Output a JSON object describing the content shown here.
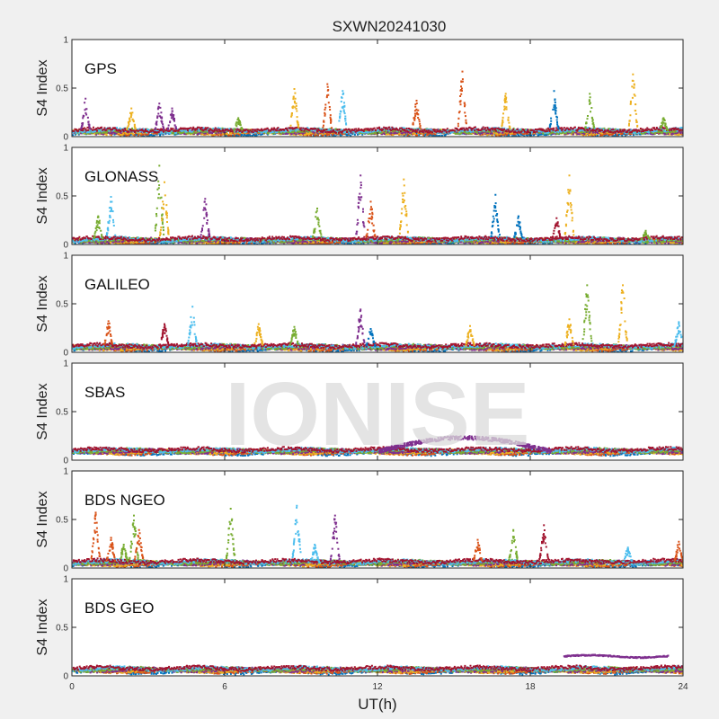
{
  "chart_data": {
    "type": "scatter",
    "title": "SXWN20241030",
    "xlabel": "UT(h)",
    "ylabel": "S4 Index",
    "xlim": [
      0,
      24
    ],
    "ylim": [
      0,
      1
    ],
    "x_ticks": [
      "0",
      "6",
      "12",
      "18",
      "24"
    ],
    "y_ticks": [
      "0",
      "0.5",
      "1"
    ],
    "watermark": "IONISE",
    "grid": false,
    "colors": [
      "#0072BD",
      "#D95319",
      "#EDB120",
      "#7E2F8E",
      "#77AC30",
      "#4DBEEE",
      "#A2142F"
    ],
    "panels": [
      {
        "label": "GPS",
        "baseline": 0.06,
        "spikes": [
          {
            "t": 0.5,
            "peak": 0.4,
            "c": 3
          },
          {
            "t": 2.3,
            "peak": 0.3,
            "c": 2
          },
          {
            "t": 3.4,
            "peak": 0.35,
            "c": 3
          },
          {
            "t": 3.9,
            "peak": 0.3,
            "c": 3
          },
          {
            "t": 6.5,
            "peak": 0.2,
            "c": 4
          },
          {
            "t": 8.7,
            "peak": 0.5,
            "c": 2
          },
          {
            "t": 10.0,
            "peak": 0.55,
            "c": 1
          },
          {
            "t": 10.6,
            "peak": 0.48,
            "c": 5
          },
          {
            "t": 13.5,
            "peak": 0.38,
            "c": 1
          },
          {
            "t": 15.3,
            "peak": 0.68,
            "c": 1
          },
          {
            "t": 17.0,
            "peak": 0.45,
            "c": 2
          },
          {
            "t": 18.9,
            "peak": 0.48,
            "c": 0
          },
          {
            "t": 20.3,
            "peak": 0.45,
            "c": 4
          },
          {
            "t": 22.0,
            "peak": 0.65,
            "c": 2
          },
          {
            "t": 23.2,
            "peak": 0.2,
            "c": 4
          }
        ]
      },
      {
        "label": "GLONASS",
        "baseline": 0.05,
        "spikes": [
          {
            "t": 1.0,
            "peak": 0.3,
            "c": 4
          },
          {
            "t": 1.5,
            "peak": 0.5,
            "c": 5
          },
          {
            "t": 3.4,
            "peak": 0.82,
            "c": 4
          },
          {
            "t": 3.6,
            "peak": 0.65,
            "c": 2
          },
          {
            "t": 5.2,
            "peak": 0.48,
            "c": 3
          },
          {
            "t": 9.6,
            "peak": 0.38,
            "c": 4
          },
          {
            "t": 11.3,
            "peak": 0.72,
            "c": 3
          },
          {
            "t": 11.7,
            "peak": 0.45,
            "c": 1
          },
          {
            "t": 13.0,
            "peak": 0.68,
            "c": 2
          },
          {
            "t": 16.6,
            "peak": 0.52,
            "c": 0
          },
          {
            "t": 17.5,
            "peak": 0.3,
            "c": 0
          },
          {
            "t": 19.0,
            "peak": 0.28,
            "c": 6
          },
          {
            "t": 19.5,
            "peak": 0.72,
            "c": 2
          },
          {
            "t": 22.5,
            "peak": 0.15,
            "c": 4
          }
        ]
      },
      {
        "label": "GALILEO",
        "baseline": 0.06,
        "spikes": [
          {
            "t": 1.4,
            "peak": 0.33,
            "c": 1
          },
          {
            "t": 3.6,
            "peak": 0.3,
            "c": 6
          },
          {
            "t": 4.7,
            "peak": 0.48,
            "c": 5
          },
          {
            "t": 7.3,
            "peak": 0.3,
            "c": 2
          },
          {
            "t": 8.7,
            "peak": 0.27,
            "c": 4
          },
          {
            "t": 11.3,
            "peak": 0.45,
            "c": 3
          },
          {
            "t": 11.7,
            "peak": 0.25,
            "c": 0
          },
          {
            "t": 15.6,
            "peak": 0.28,
            "c": 2
          },
          {
            "t": 19.5,
            "peak": 0.35,
            "c": 2
          },
          {
            "t": 20.2,
            "peak": 0.7,
            "c": 4
          },
          {
            "t": 21.6,
            "peak": 0.7,
            "c": 2
          },
          {
            "t": 23.8,
            "peak": 0.32,
            "c": 5
          }
        ]
      },
      {
        "label": "SBAS",
        "baseline": 0.1,
        "hump": {
          "from": 12.0,
          "to": 18.8,
          "peak": 0.24,
          "c": 3
        },
        "spikes": []
      },
      {
        "label": "BDS NGEO",
        "baseline": 0.06,
        "spikes": [
          {
            "t": 0.9,
            "peak": 0.58,
            "c": 1
          },
          {
            "t": 1.5,
            "peak": 0.32,
            "c": 1
          },
          {
            "t": 2.0,
            "peak": 0.25,
            "c": 4
          },
          {
            "t": 2.4,
            "peak": 0.55,
            "c": 4
          },
          {
            "t": 2.6,
            "peak": 0.4,
            "c": 1
          },
          {
            "t": 6.2,
            "peak": 0.62,
            "c": 4
          },
          {
            "t": 8.8,
            "peak": 0.65,
            "c": 5
          },
          {
            "t": 9.5,
            "peak": 0.25,
            "c": 5
          },
          {
            "t": 10.3,
            "peak": 0.55,
            "c": 3
          },
          {
            "t": 15.9,
            "peak": 0.3,
            "c": 1
          },
          {
            "t": 17.3,
            "peak": 0.4,
            "c": 4
          },
          {
            "t": 18.5,
            "peak": 0.45,
            "c": 6
          },
          {
            "t": 21.8,
            "peak": 0.22,
            "c": 5
          },
          {
            "t": 23.8,
            "peak": 0.28,
            "c": 1
          }
        ]
      },
      {
        "label": "BDS GEO",
        "baseline": 0.07,
        "segment": {
          "from": 19.3,
          "to": 23.4,
          "value": 0.21,
          "c": 3
        },
        "spikes": []
      }
    ]
  }
}
